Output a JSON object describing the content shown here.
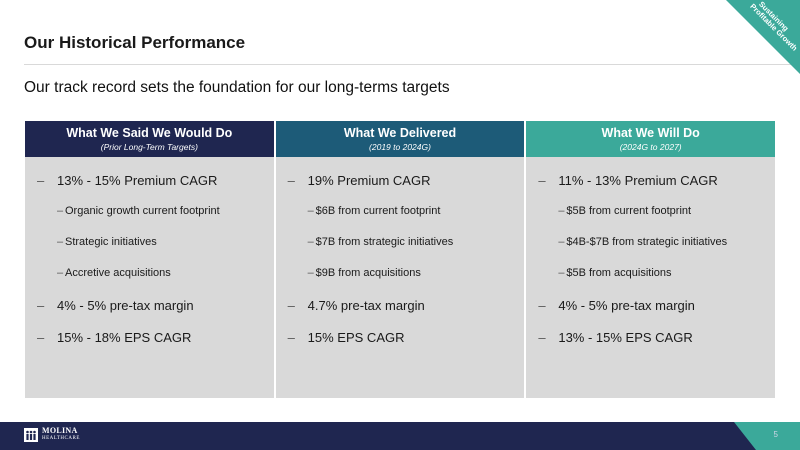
{
  "title": "Our Historical Performance",
  "subtitle": "Our track record sets the foundation for our long-terms targets",
  "corner_badge": {
    "line1": "Sustaining",
    "line2": "Profitable Growth"
  },
  "colors": {
    "navy": "#1f2650",
    "blue": "#1d5b78",
    "teal": "#3ba99a",
    "panel": "#d9d9d9"
  },
  "columns": [
    {
      "heading": "What We Said We Would Do",
      "subheading": "(Prior Long-Term Targets)",
      "items": [
        {
          "text": "13% - 15% Premium CAGR"
        },
        {
          "text": "Organic growth current footprint",
          "sub": true
        },
        {
          "text": "Strategic initiatives",
          "sub": true
        },
        {
          "text": "Accretive acquisitions",
          "sub": true
        },
        {
          "text": "4% - 5% pre-tax margin"
        },
        {
          "text": "15% - 18% EPS CAGR"
        }
      ]
    },
    {
      "heading": "What We Delivered",
      "subheading": "(2019 to 2024G)",
      "items": [
        {
          "text": "19% Premium CAGR"
        },
        {
          "text": "$6B from current footprint",
          "sub": true
        },
        {
          "text": "$7B from strategic initiatives",
          "sub": true
        },
        {
          "text": "$9B from acquisitions",
          "sub": true
        },
        {
          "text": "4.7% pre-tax margin"
        },
        {
          "text": "15% EPS CAGR"
        }
      ]
    },
    {
      "heading": "What We Will Do",
      "subheading": "(2024G to 2027)",
      "items": [
        {
          "text": "11% - 13% Premium CAGR"
        },
        {
          "text": "$5B from current footprint",
          "sub": true
        },
        {
          "text": "$4B-$7B from strategic initiatives",
          "sub": true
        },
        {
          "text": "$5B from acquisitions",
          "sub": true
        },
        {
          "text": "4% - 5% pre-tax margin"
        },
        {
          "text": "13% - 15% EPS CAGR"
        }
      ]
    }
  ],
  "footer": {
    "logo_icon": "molina-people-icon",
    "logo_text": "MOLINA",
    "logo_subtext": "HEALTHCARE",
    "page_number": "5"
  }
}
